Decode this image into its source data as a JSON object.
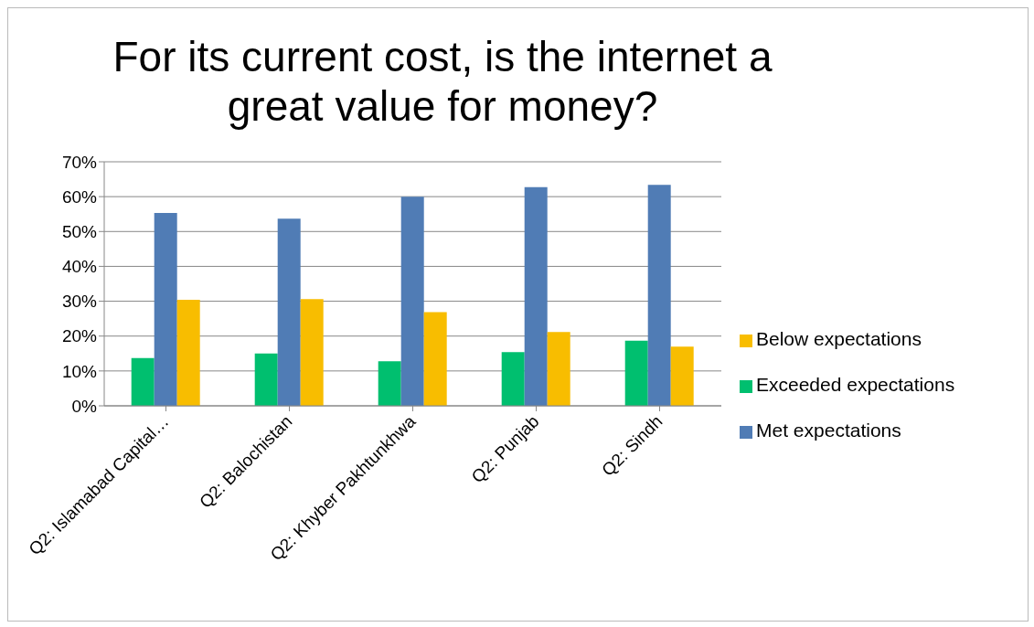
{
  "chart_data": {
    "type": "bar",
    "title": "For its current cost, is the internet a great value for money?",
    "categories": [
      "Q2: Islamabad Capital…",
      "Q2: Balochistan",
      "Q2: Khyber Pakhtunkhwa",
      "Q2: Punjab",
      "Q2: Sindh"
    ],
    "series": [
      {
        "name": "Exceeded expectations",
        "color": "#00bf6f",
        "values": [
          13.7,
          15.0,
          12.8,
          15.4,
          18.7
        ]
      },
      {
        "name": "Met expectations",
        "color": "#507cb5",
        "values": [
          55.3,
          53.7,
          60.0,
          62.7,
          63.4
        ]
      },
      {
        "name": "Below expectations",
        "color": "#f8bd00",
        "values": [
          30.4,
          30.6,
          26.9,
          21.2,
          17.0
        ]
      }
    ],
    "ylim": [
      0,
      70
    ],
    "yticks": [
      {
        "value": 0,
        "label": "0%"
      },
      {
        "value": 10,
        "label": "10%"
      },
      {
        "value": 20,
        "label": "20%"
      },
      {
        "value": 30,
        "label": "30%"
      },
      {
        "value": 40,
        "label": "40%"
      },
      {
        "value": 50,
        "label": "50%"
      },
      {
        "value": 60,
        "label": "60%"
      },
      {
        "value": 70,
        "label": "70%"
      }
    ],
    "grid": "y",
    "legend": "right"
  }
}
